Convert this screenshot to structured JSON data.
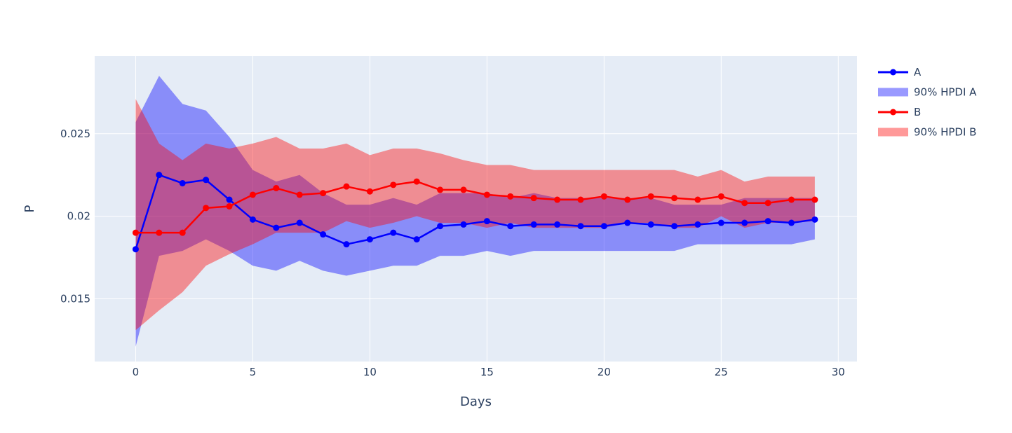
{
  "chart_data": {
    "type": "line",
    "title": "",
    "xlabel": "Days",
    "ylabel": "P",
    "xlim": [
      -1.75,
      30.8
    ],
    "ylim": [
      0.0112,
      0.0297
    ],
    "x_ticks": [
      0,
      5,
      10,
      15,
      20,
      25,
      30
    ],
    "x_tick_labels": [
      "0",
      "5",
      "10",
      "15",
      "20",
      "25",
      "30"
    ],
    "y_ticks": [
      0.015,
      0.02,
      0.025
    ],
    "y_tick_labels": [
      "0.015",
      "0.02",
      "0.025"
    ],
    "grid": true,
    "legend_position": "top-right",
    "x": [
      0,
      1,
      2,
      3,
      4,
      5,
      6,
      7,
      8,
      9,
      10,
      11,
      12,
      13,
      14,
      15,
      16,
      17,
      18,
      19,
      20,
      21,
      22,
      23,
      24,
      25,
      26,
      27,
      28,
      29
    ],
    "series": [
      {
        "name": "A",
        "kind": "line+markers",
        "color": "#0000ff",
        "values": [
          0.018,
          0.0225,
          0.022,
          0.0222,
          0.021,
          0.0198,
          0.0193,
          0.0196,
          0.0189,
          0.0183,
          0.0186,
          0.019,
          0.0186,
          0.0194,
          0.0195,
          0.0197,
          0.0194,
          0.0195,
          0.0195,
          0.0194,
          0.0194,
          0.0196,
          0.0195,
          0.0194,
          0.0195,
          0.0196,
          0.0196,
          0.0197,
          0.0196,
          0.0198
        ]
      },
      {
        "name": "90% HPDI A",
        "kind": "band",
        "color": "#0000ff",
        "opacity": 0.4,
        "lower": [
          0.0121,
          0.0176,
          0.0179,
          0.0186,
          0.0179,
          0.017,
          0.0167,
          0.0173,
          0.0167,
          0.0164,
          0.0167,
          0.017,
          0.017,
          0.0176,
          0.0176,
          0.0179,
          0.0176,
          0.0179,
          0.0179,
          0.0179,
          0.0179,
          0.0179,
          0.0179,
          0.0179,
          0.0183,
          0.0183,
          0.0183,
          0.0183,
          0.0183,
          0.0186
        ],
        "upper": [
          0.0257,
          0.0285,
          0.0268,
          0.0264,
          0.0248,
          0.0228,
          0.0221,
          0.0225,
          0.0214,
          0.0207,
          0.0207,
          0.0211,
          0.0207,
          0.0214,
          0.0214,
          0.0214,
          0.0211,
          0.0214,
          0.0211,
          0.0211,
          0.0211,
          0.0211,
          0.0211,
          0.0207,
          0.0207,
          0.0207,
          0.0211,
          0.0211,
          0.0211,
          0.0211
        ]
      },
      {
        "name": "B",
        "kind": "line+markers",
        "color": "#ff0000",
        "values": [
          0.019,
          0.019,
          0.019,
          0.0205,
          0.0206,
          0.0213,
          0.0217,
          0.0213,
          0.0214,
          0.0218,
          0.0215,
          0.0219,
          0.0221,
          0.0216,
          0.0216,
          0.0213,
          0.0212,
          0.0211,
          0.021,
          0.021,
          0.0212,
          0.021,
          0.0212,
          0.0211,
          0.021,
          0.0212,
          0.0208,
          0.0208,
          0.021,
          0.021
        ]
      },
      {
        "name": "90% HPDI B",
        "kind": "band",
        "color": "#ff0000",
        "opacity": 0.4,
        "lower": [
          0.0131,
          0.0143,
          0.0154,
          0.017,
          0.0177,
          0.0183,
          0.019,
          0.019,
          0.019,
          0.0197,
          0.0193,
          0.0196,
          0.02,
          0.0196,
          0.0196,
          0.0193,
          0.0196,
          0.0193,
          0.0193,
          0.0193,
          0.0193,
          0.0196,
          0.0196,
          0.0193,
          0.0193,
          0.02,
          0.0193,
          0.0196,
          0.0196,
          0.0197
        ],
        "upper": [
          0.0271,
          0.0244,
          0.0234,
          0.0244,
          0.0241,
          0.0244,
          0.0248,
          0.0241,
          0.0241,
          0.0244,
          0.0237,
          0.0241,
          0.0241,
          0.0238,
          0.0234,
          0.0231,
          0.0231,
          0.0228,
          0.0228,
          0.0228,
          0.0228,
          0.0228,
          0.0228,
          0.0228,
          0.0224,
          0.0228,
          0.0221,
          0.0224,
          0.0224,
          0.0224
        ]
      }
    ],
    "legend": [
      {
        "label": "A",
        "color": "#0000ff",
        "symbol": "line-marker"
      },
      {
        "label": "90% HPDI A",
        "color": "#0000ff",
        "symbol": "band"
      },
      {
        "label": "B",
        "color": "#ff0000",
        "symbol": "line-marker"
      },
      {
        "label": "90% HPDI B",
        "color": "#ff0000",
        "symbol": "band"
      }
    ]
  }
}
